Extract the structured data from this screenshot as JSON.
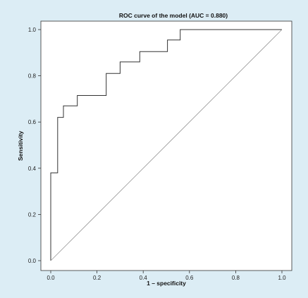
{
  "chart_data": {
    "type": "line",
    "title": "ROC curve of the model (AUC = 0.880)",
    "xlabel": "1 – specificity",
    "ylabel": "Sensitivity",
    "xlim": [
      0,
      1
    ],
    "ylim": [
      0,
      1
    ],
    "x_ticks": [
      "0.0",
      "0.2",
      "0.4",
      "0.6",
      "0.8",
      "1.0"
    ],
    "y_ticks": [
      "0.0",
      "0.2",
      "0.4",
      "0.6",
      "0.8",
      "1.0"
    ],
    "grid": false,
    "series": [
      {
        "color": "#333333",
        "style": "step",
        "x": [
          0.0,
          0.0,
          0.03,
          0.03,
          0.055,
          0.055,
          0.115,
          0.115,
          0.24,
          0.24,
          0.3,
          0.3,
          0.385,
          0.385,
          0.505,
          0.505,
          0.56,
          0.56,
          1.0
        ],
        "y": [
          0.0,
          0.38,
          0.38,
          0.62,
          0.62,
          0.67,
          0.67,
          0.715,
          0.715,
          0.81,
          0.81,
          0.86,
          0.86,
          0.905,
          0.905,
          0.955,
          0.955,
          1.0,
          1.0
        ]
      },
      {
        "color": "#999999",
        "style": "diagonal",
        "x": [
          0.0,
          1.0
        ],
        "y": [
          0.0,
          1.0
        ]
      }
    ]
  }
}
